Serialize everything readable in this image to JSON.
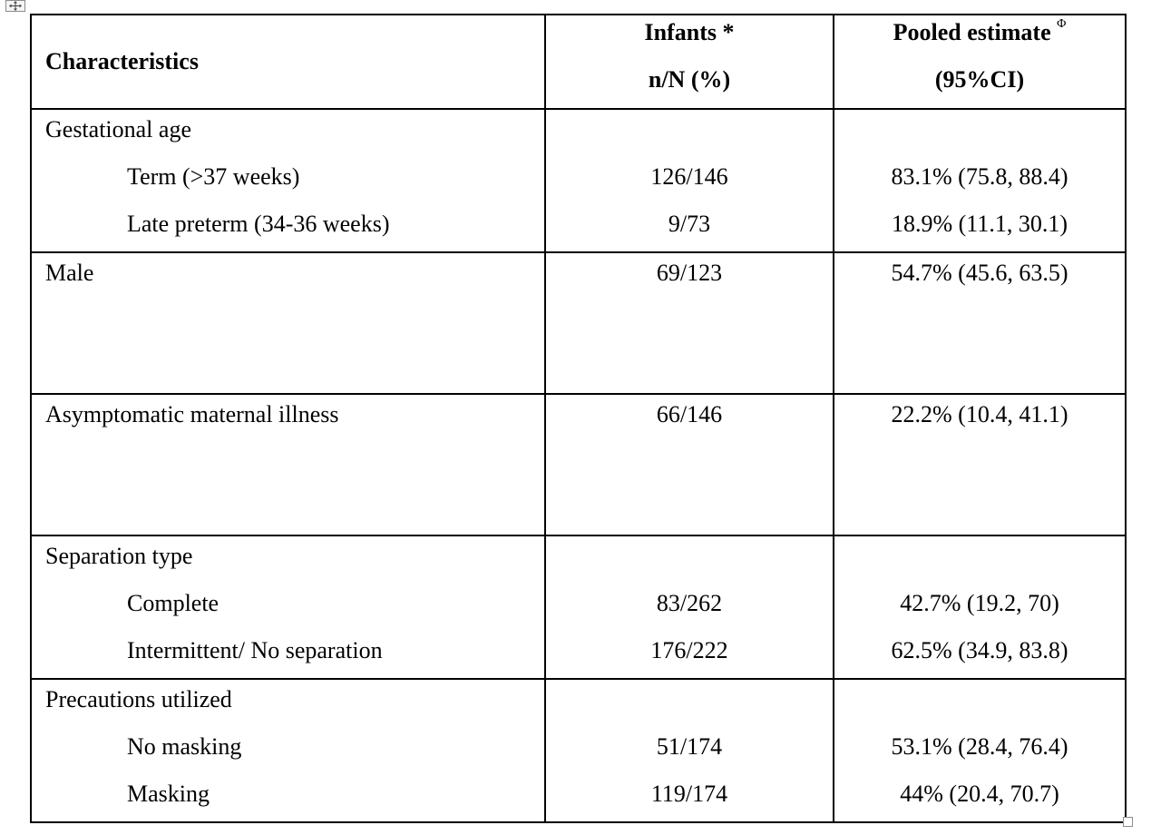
{
  "table": {
    "headers": {
      "characteristics": "Characteristics",
      "infants_line1": "Infants *",
      "infants_line2": "n/N (%)",
      "pooled_line1": "Pooled estimate",
      "pooled_symbol": "Φ",
      "pooled_line2": "(95%CI)"
    },
    "gestational_age": {
      "label": "Gestational age",
      "rows": [
        {
          "label": "Term (>37 weeks)",
          "infants": "126/146",
          "pooled": "83.1% (75.8, 88.4)"
        },
        {
          "label": "Late preterm (34-36 weeks)",
          "infants": "9/73",
          "pooled": "18.9%  (11.1, 30.1)"
        }
      ]
    },
    "male": {
      "label": "Male",
      "infants": "69/123",
      "pooled": "54.7% (45.6, 63.5)"
    },
    "asymptomatic": {
      "label": "Asymptomatic maternal illness",
      "infants": "66/146",
      "pooled": "22.2% (10.4, 41.1)"
    },
    "separation_type": {
      "label": "Separation type",
      "rows": [
        {
          "label": "Complete",
          "infants": "83/262",
          "pooled": "42.7% (19.2, 70)"
        },
        {
          "label": "Intermittent/ No separation",
          "infants": "176/222",
          "pooled": "62.5% (34.9, 83.8)"
        }
      ]
    },
    "precautions": {
      "label": "Precautions utilized",
      "rows": [
        {
          "label": "No masking",
          "infants": "51/174",
          "pooled": "53.1% (28.4, 76.4)"
        },
        {
          "label": "Masking",
          "infants": "119/174",
          "pooled": "44% (20.4, 70.7)"
        }
      ]
    }
  }
}
